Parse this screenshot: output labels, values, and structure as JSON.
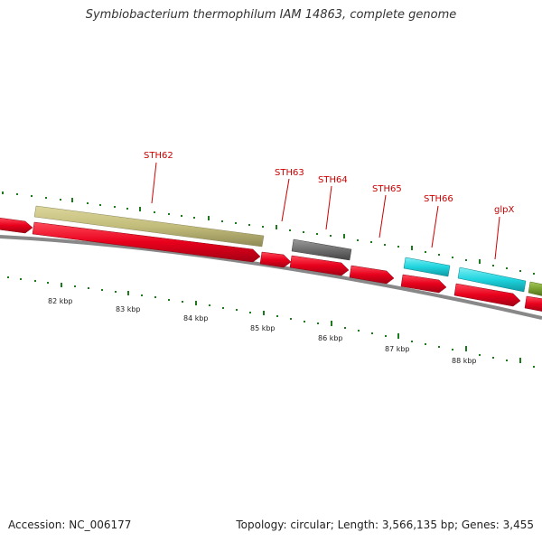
{
  "title": "Symbiobacterium thermophilum IAM 14863, complete genome",
  "footer": {
    "accession": "Accession: NC_006177",
    "topology": "Topology: circular; Length: 3,566,135 bp; Genes: 3,455"
  },
  "gene_labels": [
    "STH62",
    "STH63",
    "STH64",
    "STH65",
    "STH66",
    "glpX"
  ],
  "scale_labels": [
    "82 kbp",
    "83 kbp",
    "84 kbp",
    "85 kbp",
    "86 kbp",
    "87 kbp",
    "88 kbp"
  ],
  "colors": {
    "red": "#e8001c",
    "tan": "#c3bd7b",
    "gray": "#6e6e6e",
    "cyan": "#1fd4de",
    "olive": "#7aa032",
    "tick": "#1d7a1d",
    "label": "#cc0000"
  }
}
